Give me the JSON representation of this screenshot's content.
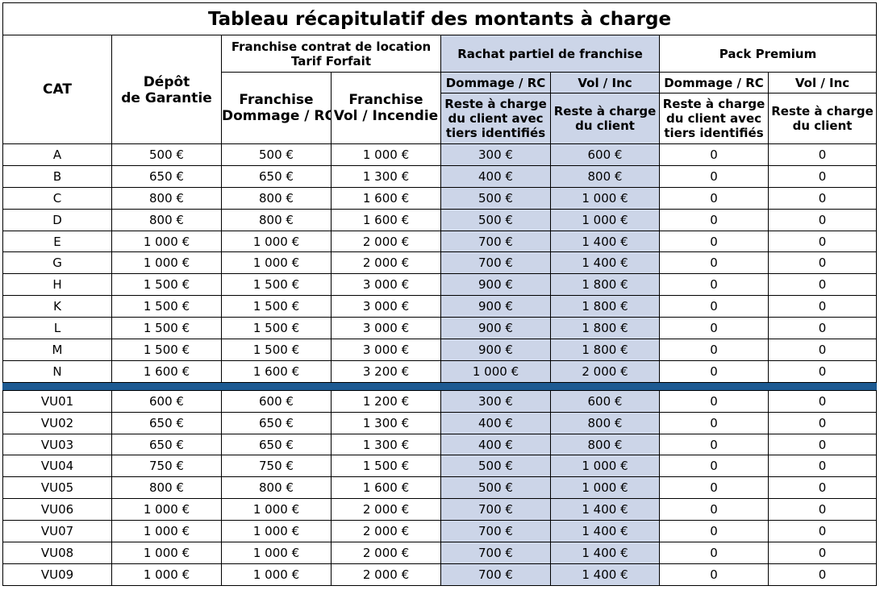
{
  "title": "Tableau récapitulatif des montants à charge",
  "headers": {
    "cat": "CAT",
    "depot_line1": "Dépôt",
    "depot_line2": "de Garantie",
    "franchise_group_line1": "Franchise contrat de location",
    "franchise_group_line2": "Tarif Forfait",
    "franchise_dommage_line1": "Franchise",
    "franchise_dommage_line2": "Dommage / RC",
    "franchise_vol_line1": "Franchise",
    "franchise_vol_line2": "Vol / Incendie",
    "rachat_group": "Rachat partiel de franchise",
    "rachat_dommage": "Dommage / RC",
    "rachat_vol": "Vol / Inc",
    "rachat_dommage_desc_line1": "Reste à charge",
    "rachat_dommage_desc_line2": "du client avec",
    "rachat_dommage_desc_line3": "tiers identifiés",
    "rachat_vol_desc_line1": "Reste à charge",
    "rachat_vol_desc_line2": "du client",
    "premium_group": "Pack Premium",
    "premium_dommage": "Dommage / RC",
    "premium_vol": "Vol / Inc",
    "premium_dommage_desc_line1": "Reste à charge",
    "premium_dommage_desc_line2": "du client avec",
    "premium_dommage_desc_line3": "tiers identifiés",
    "premium_vol_desc_line1": "Reste à charge",
    "premium_vol_desc_line2": "du client"
  },
  "colors": {
    "shade": "#ccd5e8",
    "separator": "#1d5a92"
  },
  "group_a": [
    [
      "A",
      "500 €",
      "500 €",
      "1 000 €",
      "300 €",
      "600 €",
      "0",
      "0"
    ],
    [
      "B",
      "650 €",
      "650 €",
      "1 300 €",
      "400 €",
      "800 €",
      "0",
      "0"
    ],
    [
      "C",
      "800 €",
      "800 €",
      "1 600 €",
      "500 €",
      "1 000 €",
      "0",
      "0"
    ],
    [
      "D",
      "800 €",
      "800 €",
      "1 600 €",
      "500 €",
      "1 000 €",
      "0",
      "0"
    ],
    [
      "E",
      "1 000 €",
      "1 000 €",
      "2 000 €",
      "700 €",
      "1 400 €",
      "0",
      "0"
    ],
    [
      "G",
      "1 000 €",
      "1 000 €",
      "2 000 €",
      "700 €",
      "1 400 €",
      "0",
      "0"
    ],
    [
      "H",
      "1 500 €",
      "1 500 €",
      "3 000 €",
      "900 €",
      "1 800 €",
      "0",
      "0"
    ],
    [
      "K",
      "1 500 €",
      "1 500 €",
      "3 000 €",
      "900 €",
      "1 800 €",
      "0",
      "0"
    ],
    [
      "L",
      "1 500 €",
      "1 500 €",
      "3 000 €",
      "900 €",
      "1 800 €",
      "0",
      "0"
    ],
    [
      "M",
      "1 500 €",
      "1 500 €",
      "3 000 €",
      "900 €",
      "1 800 €",
      "0",
      "0"
    ],
    [
      "N",
      "1 600 €",
      "1 600 €",
      "3 200 €",
      "1 000 €",
      "2 000 €",
      "0",
      "0"
    ]
  ],
  "group_b": [
    [
      "VU01",
      "600 €",
      "600 €",
      "1 200 €",
      "300 €",
      "600 €",
      "0",
      "0"
    ],
    [
      "VU02",
      "650 €",
      "650 €",
      "1 300 €",
      "400 €",
      "800 €",
      "0",
      "0"
    ],
    [
      "VU03",
      "650 €",
      "650 €",
      "1 300 €",
      "400 €",
      "800 €",
      "0",
      "0"
    ],
    [
      "VU04",
      "750 €",
      "750 €",
      "1 500 €",
      "500 €",
      "1 000 €",
      "0",
      "0"
    ],
    [
      "VU05",
      "800 €",
      "800 €",
      "1 600 €",
      "500 €",
      "1 000 €",
      "0",
      "0"
    ],
    [
      "VU06",
      "1 000 €",
      "1 000 €",
      "2 000 €",
      "700 €",
      "1 400 €",
      "0",
      "0"
    ],
    [
      "VU07",
      "1 000 €",
      "1 000 €",
      "2 000 €",
      "700 €",
      "1 400 €",
      "0",
      "0"
    ],
    [
      "VU08",
      "1 000 €",
      "1 000 €",
      "2 000 €",
      "700 €",
      "1 400 €",
      "0",
      "0"
    ],
    [
      "VU09",
      "1 000 €",
      "1 000 €",
      "2 000 €",
      "700 €",
      "1 400 €",
      "0",
      "0"
    ]
  ]
}
